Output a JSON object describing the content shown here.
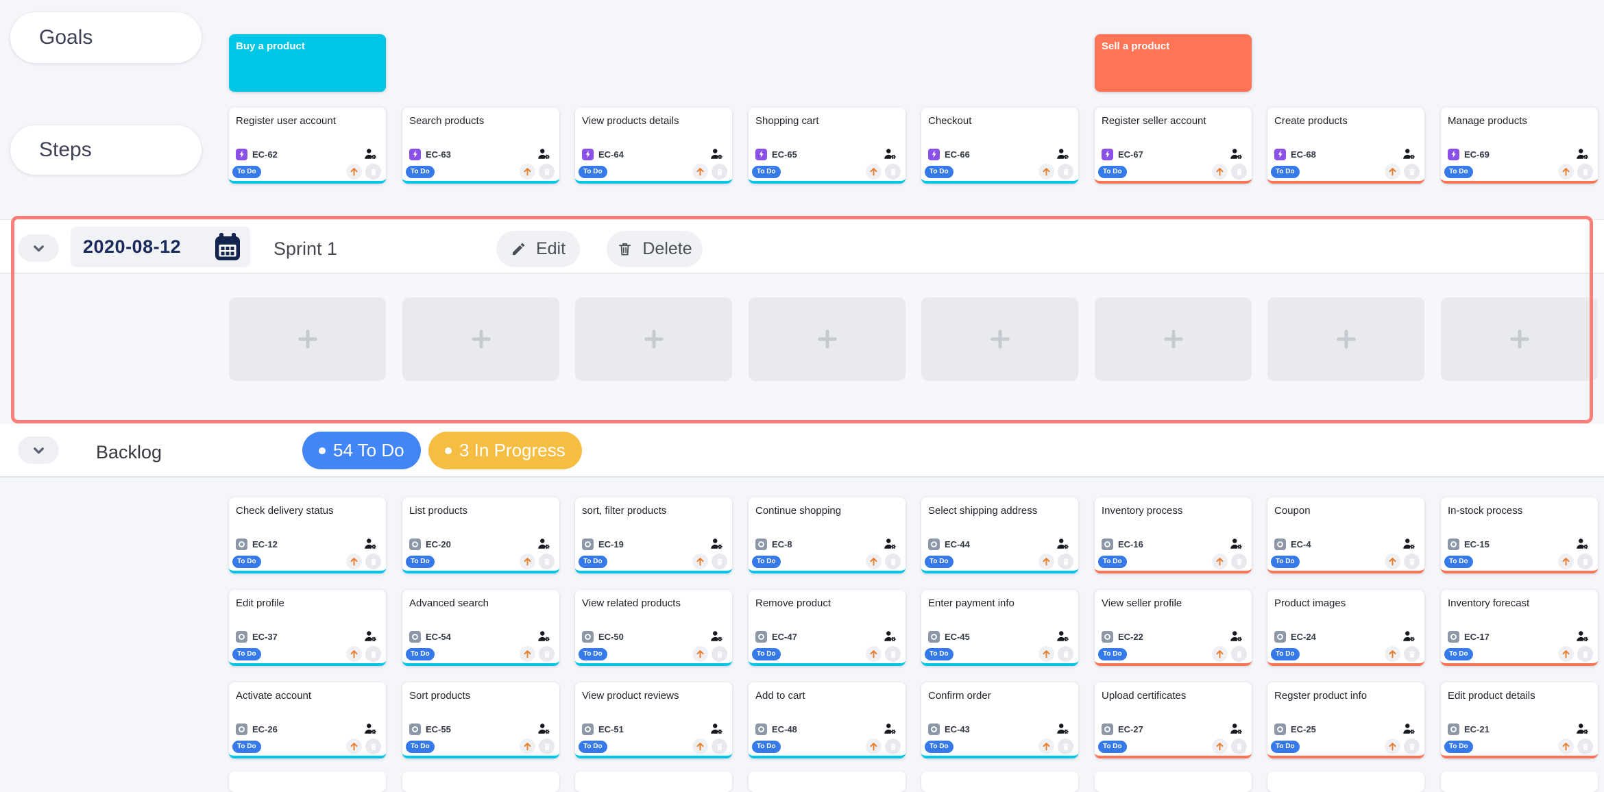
{
  "colors": {
    "page_bg": "#f5f6fa",
    "cyan_accent": "#00c6e6",
    "orange_accent": "#fe7454",
    "sprint_border": "#fb7f78",
    "todo_badge": "#3679e8",
    "story_purple": "#8a50e8",
    "story_gray": "#8d97a8",
    "todo_counter": "#4286f5",
    "inprogress_counter": "#f5bd42",
    "date_navy": "#1b2a5a",
    "arrow_orange": "#e87f2e"
  },
  "icons": {
    "step_badge": "lightning-bolt",
    "backlog_badge": "story-circle",
    "assignee": "person-gear",
    "priority": "arrow-up",
    "card_delete": "trash",
    "calendar": "calendar",
    "collapse": "chevron-down",
    "edit": "pencil",
    "add": "plus"
  },
  "lanes": {
    "goals_label": "Goals",
    "steps_label": "Steps"
  },
  "goals": [
    {
      "title": "Buy a product",
      "color": "#00c6e6",
      "col": 0
    },
    {
      "title": "Sell a product",
      "color": "#fe7454",
      "col": 5
    }
  ],
  "steps": [
    {
      "title": "Register user account",
      "id": "EC-62",
      "status": "To Do",
      "accent": "#00c6e6",
      "col": 0
    },
    {
      "title": "Search products",
      "id": "EC-63",
      "status": "To Do",
      "accent": "#00c6e6",
      "col": 1
    },
    {
      "title": "View products details",
      "id": "EC-64",
      "status": "To Do",
      "accent": "#00c6e6",
      "col": 2
    },
    {
      "title": "Shopping cart",
      "id": "EC-65",
      "status": "To Do",
      "accent": "#00c6e6",
      "col": 3
    },
    {
      "title": "Checkout",
      "id": "EC-66",
      "status": "To Do",
      "accent": "#00c6e6",
      "col": 4
    },
    {
      "title": "Register seller account",
      "id": "EC-67",
      "status": "To Do",
      "accent": "#fe7454",
      "col": 5
    },
    {
      "title": "Create products",
      "id": "EC-68",
      "status": "To Do",
      "accent": "#fe7454",
      "col": 6
    },
    {
      "title": "Manage products",
      "id": "EC-69",
      "status": "To Do",
      "accent": "#fe7454",
      "col": 7
    }
  ],
  "sprint": {
    "date": "2020-08-12",
    "name": "Sprint 1",
    "edit_label": "Edit",
    "delete_label": "Delete",
    "slot_count": 8
  },
  "backlog": {
    "label": "Backlog",
    "counters": [
      {
        "text": "54 To Do",
        "color": "#4286f5"
      },
      {
        "text": "3 In Progress",
        "color": "#f5bd42"
      }
    ],
    "rows": [
      [
        {
          "title": "Check delivery status",
          "id": "EC-12",
          "status": "To Do",
          "accent": "#00c6e6"
        },
        {
          "title": "List products",
          "id": "EC-20",
          "status": "To Do",
          "accent": "#00c6e6"
        },
        {
          "title": "sort, filter products",
          "id": "EC-19",
          "status": "To Do",
          "accent": "#00c6e6"
        },
        {
          "title": "Continue shopping",
          "id": "EC-8",
          "status": "To Do",
          "accent": "#00c6e6"
        },
        {
          "title": "Select shipping address",
          "id": "EC-44",
          "status": "To Do",
          "accent": "#00c6e6"
        },
        {
          "title": "Inventory process",
          "id": "EC-16",
          "status": "To Do",
          "accent": "#fe7454"
        },
        {
          "title": "Coupon",
          "id": "EC-4",
          "status": "To Do",
          "accent": "#fe7454"
        },
        {
          "title": "In-stock process",
          "id": "EC-15",
          "status": "To Do",
          "accent": "#fe7454"
        }
      ],
      [
        {
          "title": "Edit profile",
          "id": "EC-37",
          "status": "To Do",
          "accent": "#00c6e6"
        },
        {
          "title": "Advanced search",
          "id": "EC-54",
          "status": "To Do",
          "accent": "#00c6e6"
        },
        {
          "title": "View related products",
          "id": "EC-50",
          "status": "To Do",
          "accent": "#00c6e6"
        },
        {
          "title": "Remove product",
          "id": "EC-47",
          "status": "To Do",
          "accent": "#00c6e6"
        },
        {
          "title": "Enter payment info",
          "id": "EC-45",
          "status": "To Do",
          "accent": "#00c6e6"
        },
        {
          "title": "View seller profile",
          "id": "EC-22",
          "status": "To Do",
          "accent": "#fe7454"
        },
        {
          "title": "Product images",
          "id": "EC-24",
          "status": "To Do",
          "accent": "#fe7454"
        },
        {
          "title": "Inventory forecast",
          "id": "EC-17",
          "status": "To Do",
          "accent": "#fe7454"
        }
      ],
      [
        {
          "title": "Activate account",
          "id": "EC-26",
          "status": "To Do",
          "accent": "#00c6e6"
        },
        {
          "title": "Sort products",
          "id": "EC-55",
          "status": "To Do",
          "accent": "#00c6e6"
        },
        {
          "title": "View product reviews",
          "id": "EC-51",
          "status": "To Do",
          "accent": "#00c6e6"
        },
        {
          "title": "Add to cart",
          "id": "EC-48",
          "status": "To Do",
          "accent": "#00c6e6"
        },
        {
          "title": "Confirm order",
          "id": "EC-43",
          "status": "To Do",
          "accent": "#00c6e6"
        },
        {
          "title": "Upload certificates",
          "id": "EC-27",
          "status": "To Do",
          "accent": "#fe7454"
        },
        {
          "title": "Regster product info",
          "id": "EC-25",
          "status": "To Do",
          "accent": "#fe7454"
        },
        {
          "title": "Edit product details",
          "id": "EC-21",
          "status": "To Do",
          "accent": "#fe7454"
        }
      ]
    ]
  }
}
